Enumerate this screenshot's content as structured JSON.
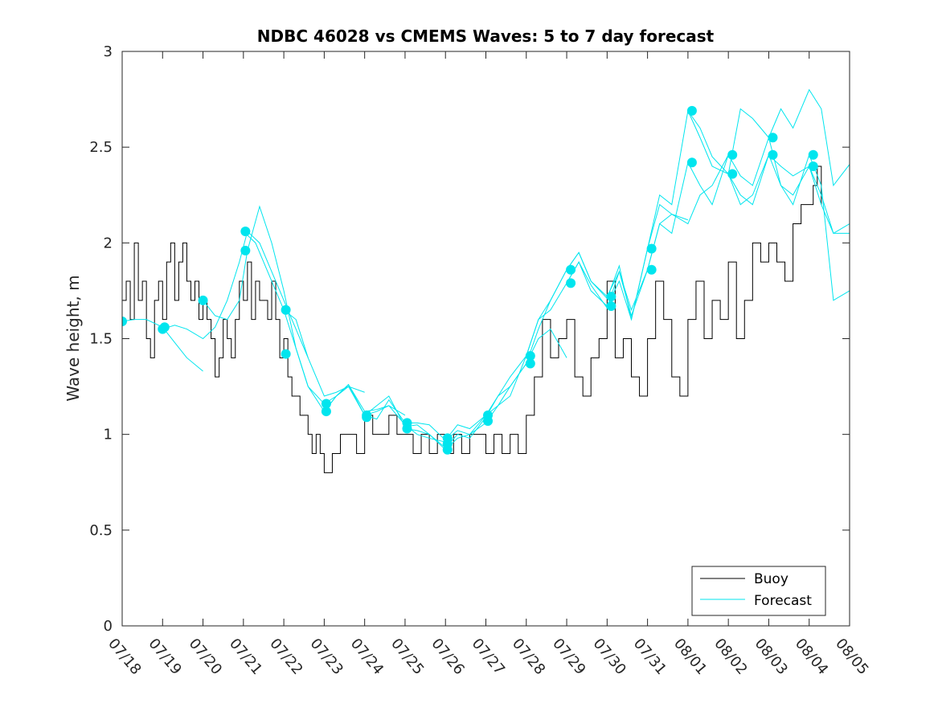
{
  "chart_data": {
    "type": "line",
    "title": "NDBC 46028 vs CMEMS Waves: 5 to 7 day forecast",
    "xlabel": "",
    "ylabel": "Wave height, m",
    "x_tick_labels": [
      "07/18",
      "07/19",
      "07/20",
      "07/21",
      "07/22",
      "07/23",
      "07/24",
      "07/25",
      "07/26",
      "07/27",
      "07/28",
      "07/29",
      "07/30",
      "07/31",
      "08/01",
      "08/02",
      "08/03",
      "08/04",
      "08/05"
    ],
    "xlim": [
      0,
      18
    ],
    "ylim": [
      0,
      3
    ],
    "y_ticks": [
      0,
      0.5,
      1,
      1.5,
      2,
      2.5,
      3
    ],
    "y_tick_labels": [
      "0",
      "0.5",
      "1",
      "1.5",
      "2",
      "2.5",
      "3"
    ],
    "grid": false,
    "legend": {
      "position": "bottom-right",
      "entries": [
        "Buoy",
        "Forecast"
      ]
    },
    "colors": {
      "buoy": "#000000",
      "forecast": "#00e5ee",
      "forecast_marker": "#00e5ee"
    },
    "series": [
      {
        "name": "Buoy",
        "x": [
          0,
          0.1,
          0.2,
          0.3,
          0.4,
          0.5,
          0.6,
          0.7,
          0.8,
          0.9,
          1.0,
          1.1,
          1.2,
          1.3,
          1.4,
          1.5,
          1.6,
          1.7,
          1.8,
          1.9,
          2.0,
          2.1,
          2.2,
          2.3,
          2.4,
          2.5,
          2.6,
          2.7,
          2.8,
          2.9,
          3.0,
          3.1,
          3.2,
          3.3,
          3.4,
          3.5,
          3.6,
          3.7,
          3.8,
          3.9,
          4.0,
          4.1,
          4.2,
          4.3,
          4.4,
          4.5,
          4.6,
          4.7,
          4.8,
          4.9,
          5.0,
          5.2,
          5.4,
          5.6,
          5.8,
          6.0,
          6.2,
          6.4,
          6.6,
          6.8,
          7.0,
          7.2,
          7.4,
          7.6,
          7.8,
          8.0,
          8.2,
          8.4,
          8.6,
          8.8,
          9.0,
          9.2,
          9.4,
          9.6,
          9.8,
          10.0,
          10.2,
          10.4,
          10.6,
          10.8,
          11.0,
          11.2,
          11.4,
          11.6,
          11.8,
          12.0,
          12.2,
          12.4,
          12.6,
          12.8,
          13.0,
          13.2,
          13.4,
          13.6,
          13.8,
          14.0,
          14.2,
          14.4,
          14.6,
          14.8,
          15.0,
          15.2,
          15.4,
          15.6,
          15.8,
          16.0,
          16.2,
          16.4,
          16.6,
          16.8,
          17.0,
          17.1,
          17.2,
          17.3
        ],
        "y": [
          1.7,
          1.8,
          1.6,
          2.0,
          1.7,
          1.8,
          1.5,
          1.4,
          1.7,
          1.8,
          1.6,
          1.9,
          2.0,
          1.7,
          1.9,
          2.0,
          1.8,
          1.7,
          1.8,
          1.6,
          1.7,
          1.6,
          1.5,
          1.3,
          1.4,
          1.6,
          1.5,
          1.4,
          1.6,
          1.8,
          1.7,
          1.9,
          1.6,
          1.8,
          1.7,
          1.7,
          1.6,
          1.8,
          1.6,
          1.4,
          1.5,
          1.3,
          1.2,
          1.2,
          1.1,
          1.1,
          1.0,
          0.9,
          1.0,
          0.9,
          0.8,
          0.9,
          1.0,
          1.0,
          0.9,
          1.1,
          1.0,
          1.0,
          1.1,
          1.0,
          1.0,
          0.9,
          1.0,
          0.9,
          1.0,
          0.9,
          1.0,
          0.9,
          1.0,
          1.0,
          0.9,
          1.0,
          0.9,
          1.0,
          0.9,
          1.1,
          1.3,
          1.6,
          1.4,
          1.5,
          1.6,
          1.3,
          1.2,
          1.4,
          1.5,
          1.8,
          1.4,
          1.5,
          1.3,
          1.2,
          1.5,
          1.8,
          1.6,
          1.3,
          1.2,
          1.6,
          1.8,
          1.5,
          1.7,
          1.6,
          1.9,
          1.5,
          1.7,
          2.0,
          1.9,
          2.0,
          1.9,
          1.8,
          2.1,
          2.2,
          2.2,
          2.3,
          2.4,
          2.2
        ]
      },
      {
        "name": "Forecast",
        "runs": [
          {
            "x": [
              0,
              0.3,
              0.6,
              1.0,
              1.3,
              1.6,
              2.0
            ],
            "y": [
              1.59,
              1.6,
              1.6,
              1.56,
              1.48,
              1.4,
              1.33
            ]
          },
          {
            "x": [
              1.0,
              1.3,
              1.6,
              2.0,
              2.3,
              2.6,
              2.9,
              3.1,
              3.4,
              3.7,
              4.0,
              4.3,
              4.6
            ],
            "y": [
              1.55,
              1.57,
              1.55,
              1.5,
              1.56,
              1.7,
              1.9,
              2.06,
              2.0,
              1.85,
              1.7,
              1.55,
              1.4
            ]
          },
          {
            "x": [
              2.0,
              2.3,
              2.6,
              2.9,
              3.1,
              3.4,
              3.7,
              4.0,
              4.3,
              4.6,
              5.0,
              5.3,
              5.6,
              6.0
            ],
            "y": [
              1.7,
              1.62,
              1.6,
              1.7,
              1.96,
              2.19,
              2.0,
              1.75,
              1.45,
              1.25,
              1.16,
              1.2,
              1.25,
              1.22
            ]
          },
          {
            "x": [
              3.0,
              3.3,
              3.6,
              4.0,
              4.3,
              4.6,
              5.0,
              5.3,
              5.6,
              6.0,
              6.3,
              6.6,
              7.0
            ],
            "y": [
              2.06,
              2.0,
              1.85,
              1.65,
              1.45,
              1.25,
              1.12,
              1.2,
              1.26,
              1.12,
              1.13,
              1.15,
              1.1
            ]
          },
          {
            "x": [
              4.0,
              4.3,
              4.6,
              5.0,
              5.3,
              5.6,
              6.0,
              6.3,
              6.6,
              7.0,
              7.3,
              7.6,
              8.0
            ],
            "y": [
              1.65,
              1.6,
              1.4,
              1.2,
              1.22,
              1.25,
              1.1,
              1.12,
              1.15,
              1.05,
              1.0,
              0.98,
              0.96
            ]
          },
          {
            "x": [
              5.0,
              5.3,
              5.6,
              6.0,
              6.3,
              6.6,
              7.0,
              7.3,
              7.6,
              8.0,
              8.3,
              8.6,
              9.0
            ],
            "y": [
              1.12,
              1.2,
              1.26,
              1.1,
              1.15,
              1.2,
              1.04,
              1.05,
              1.0,
              0.92,
              0.98,
              1.0,
              1.06
            ]
          },
          {
            "x": [
              6.0,
              6.3,
              6.6,
              7.0,
              7.3,
              7.6,
              8.0,
              8.3,
              8.6,
              9.0,
              9.3,
              9.6,
              10.0
            ],
            "y": [
              1.1,
              1.08,
              1.18,
              1.06,
              1.06,
              1.05,
              0.97,
              1.05,
              1.03,
              1.1,
              1.2,
              1.3,
              1.41
            ]
          },
          {
            "x": [
              7.0,
              7.3,
              7.6,
              8.0,
              8.3,
              8.6,
              9.0,
              9.3,
              9.6,
              10.0,
              10.3,
              10.6,
              11.0
            ],
            "y": [
              1.03,
              1.02,
              1.0,
              0.93,
              1.0,
              0.98,
              1.09,
              1.2,
              1.25,
              1.37,
              1.5,
              1.55,
              1.4
            ]
          },
          {
            "x": [
              8.0,
              8.3,
              8.6,
              9.0,
              9.3,
              9.6,
              10.0,
              10.3,
              10.6,
              11.0,
              11.3,
              11.6,
              12.0
            ],
            "y": [
              0.97,
              1.02,
              1.0,
              1.1,
              1.15,
              1.2,
              1.41,
              1.6,
              1.65,
              1.79,
              1.9,
              1.75,
              1.67
            ]
          },
          {
            "x": [
              9.0,
              9.3,
              9.6,
              10.0,
              10.3,
              10.6,
              11.0,
              11.3,
              11.6,
              12.0,
              12.3,
              12.6,
              13.0
            ],
            "y": [
              1.06,
              1.15,
              1.25,
              1.37,
              1.55,
              1.7,
              1.86,
              1.95,
              1.8,
              1.72,
              1.85,
              1.65,
              1.86
            ]
          },
          {
            "x": [
              10.0,
              10.3,
              10.6,
              11.0,
              11.3,
              11.6,
              12.0,
              12.3,
              12.6,
              13.0,
              13.3,
              13.6,
              14.0
            ],
            "y": [
              1.41,
              1.6,
              1.7,
              1.86,
              1.95,
              1.8,
              1.71,
              1.88,
              1.6,
              1.97,
              2.2,
              2.15,
              2.12
            ]
          },
          {
            "x": [
              11.0,
              11.3,
              11.6,
              12.0,
              12.3,
              12.6,
              13.0,
              13.3,
              13.6,
              14.0,
              14.3,
              14.6,
              15.0
            ],
            "y": [
              1.79,
              1.9,
              1.78,
              1.66,
              1.85,
              1.62,
              1.86,
              2.1,
              2.15,
              2.1,
              2.25,
              2.3,
              2.46
            ]
          },
          {
            "x": [
              12.0,
              12.3,
              12.6,
              13.0,
              13.3,
              13.6,
              14.0,
              14.3,
              14.6,
              15.0,
              15.3,
              15.6,
              16.0
            ],
            "y": [
              1.67,
              1.8,
              1.6,
              1.97,
              2.25,
              2.2,
              2.69,
              2.6,
              2.45,
              2.36,
              2.2,
              2.25,
              2.46
            ]
          },
          {
            "x": [
              13.0,
              13.3,
              13.6,
              14.0,
              14.3,
              14.6,
              15.0,
              15.3,
              15.6,
              16.0,
              16.3,
              16.6,
              17.0
            ],
            "y": [
              1.86,
              2.1,
              2.05,
              2.42,
              2.3,
              2.2,
              2.46,
              2.35,
              2.3,
              2.55,
              2.3,
              2.25,
              2.4
            ]
          },
          {
            "x": [
              14.0,
              14.3,
              14.6,
              15.0,
              15.3,
              15.6,
              16.0,
              16.3,
              16.6,
              17.0,
              17.3,
              17.6,
              18.0
            ],
            "y": [
              2.69,
              2.55,
              2.4,
              2.36,
              2.25,
              2.2,
              2.46,
              2.3,
              2.2,
              2.46,
              2.3,
              1.7,
              1.75
            ]
          },
          {
            "x": [
              15.0,
              15.3,
              15.6,
              16.0,
              16.3,
              16.6,
              17.0,
              17.3,
              17.6,
              18.0
            ],
            "y": [
              2.36,
              2.7,
              2.65,
              2.55,
              2.7,
              2.6,
              2.8,
              2.7,
              2.3,
              2.41
            ]
          },
          {
            "x": [
              16.0,
              16.3,
              16.6,
              17.0,
              17.3,
              17.6,
              18.0
            ],
            "y": [
              2.46,
              2.4,
              2.35,
              2.4,
              2.2,
              2.05,
              2.1
            ]
          },
          {
            "x": [
              17.0,
              17.3,
              17.6,
              18.0
            ],
            "y": [
              2.4,
              2.25,
              2.05,
              2.05
            ]
          }
        ],
        "markers": {
          "x": [
            0,
            1.0,
            1.05,
            2.0,
            3.05,
            3.05,
            4.05,
            4.05,
            5.05,
            5.05,
            6.05,
            6.05,
            7.05,
            7.05,
            8.05,
            8.05,
            8.05,
            9.05,
            9.05,
            10.1,
            10.1,
            11.1,
            11.1,
            12.1,
            12.1,
            13.1,
            13.1,
            14.1,
            14.1,
            15.1,
            15.1,
            16.1,
            16.1,
            17.1,
            17.1
          ],
          "y": [
            1.59,
            1.55,
            1.56,
            1.7,
            2.06,
            1.96,
            1.65,
            1.42,
            1.16,
            1.12,
            1.1,
            1.09,
            1.06,
            1.03,
            0.98,
            0.95,
            0.92,
            1.1,
            1.07,
            1.41,
            1.37,
            1.86,
            1.79,
            1.72,
            1.67,
            1.97,
            1.86,
            2.69,
            2.42,
            2.46,
            2.36,
            2.55,
            2.46,
            2.46,
            2.4
          ]
        }
      }
    ]
  }
}
